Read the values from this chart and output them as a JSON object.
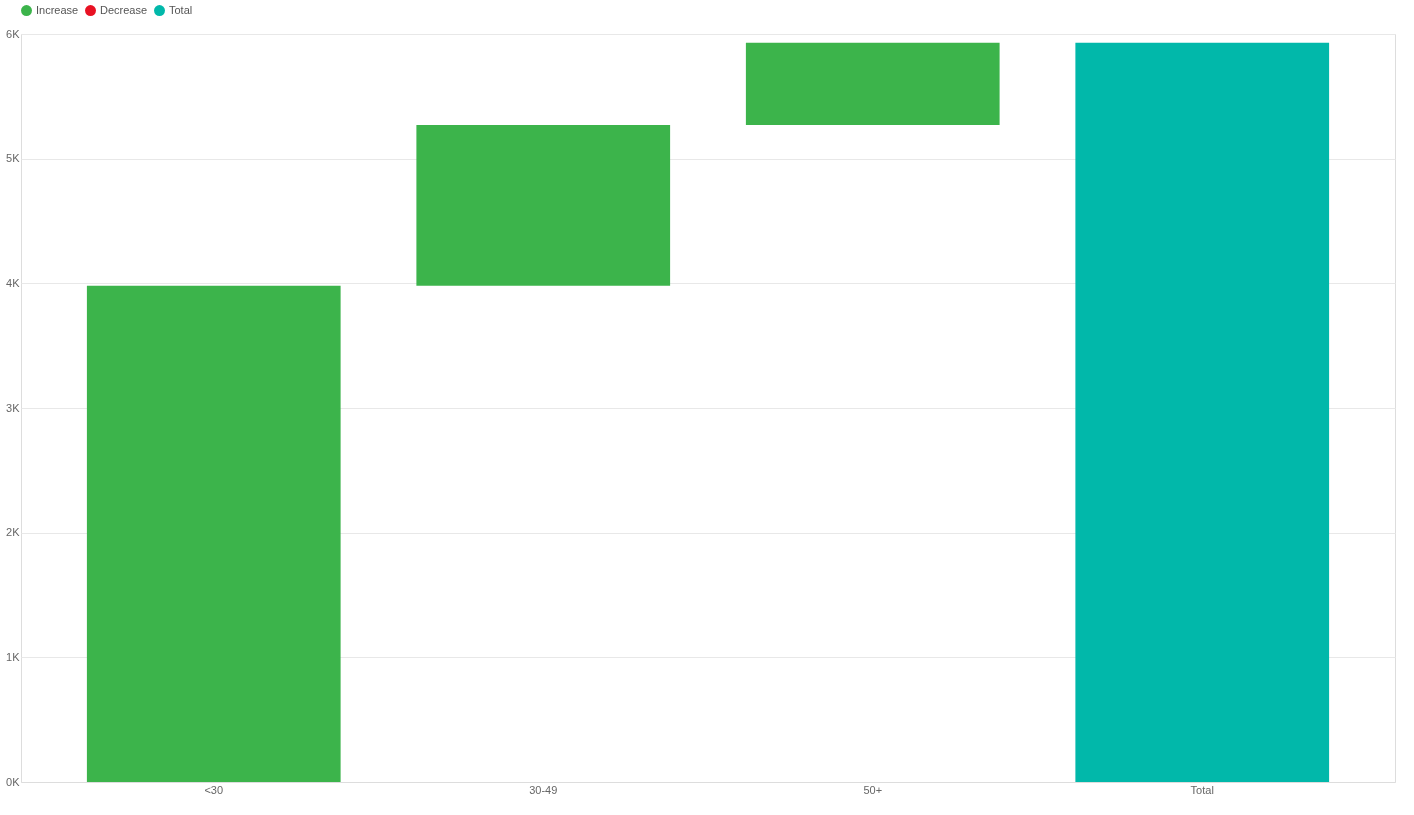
{
  "chart_data": {
    "type": "bar",
    "categories": [
      "<30",
      "30-49",
      "50+",
      "Total"
    ],
    "series": [
      {
        "name": "Increase",
        "color": "#3cb44b",
        "values": [
          3980,
          1290,
          660,
          null
        ],
        "base": [
          0,
          3980,
          5270,
          null
        ]
      },
      {
        "name": "Decrease",
        "color": "#e81123",
        "values": [
          null,
          null,
          null,
          null
        ],
        "base": [
          null,
          null,
          null,
          null
        ]
      },
      {
        "name": "Total",
        "color": "#01b8aa",
        "values": [
          null,
          null,
          null,
          5930
        ],
        "base": [
          null,
          null,
          null,
          0
        ]
      }
    ],
    "ylim": [
      0,
      6000
    ],
    "yticks": [
      {
        "value": 0,
        "label": "0K"
      },
      {
        "value": 1000,
        "label": "1K"
      },
      {
        "value": 2000,
        "label": "2K"
      },
      {
        "value": 3000,
        "label": "3K"
      },
      {
        "value": 4000,
        "label": "4K"
      },
      {
        "value": 5000,
        "label": "5K"
      },
      {
        "value": 6000,
        "label": "6K"
      }
    ],
    "grid": "y",
    "legend": "top left"
  }
}
